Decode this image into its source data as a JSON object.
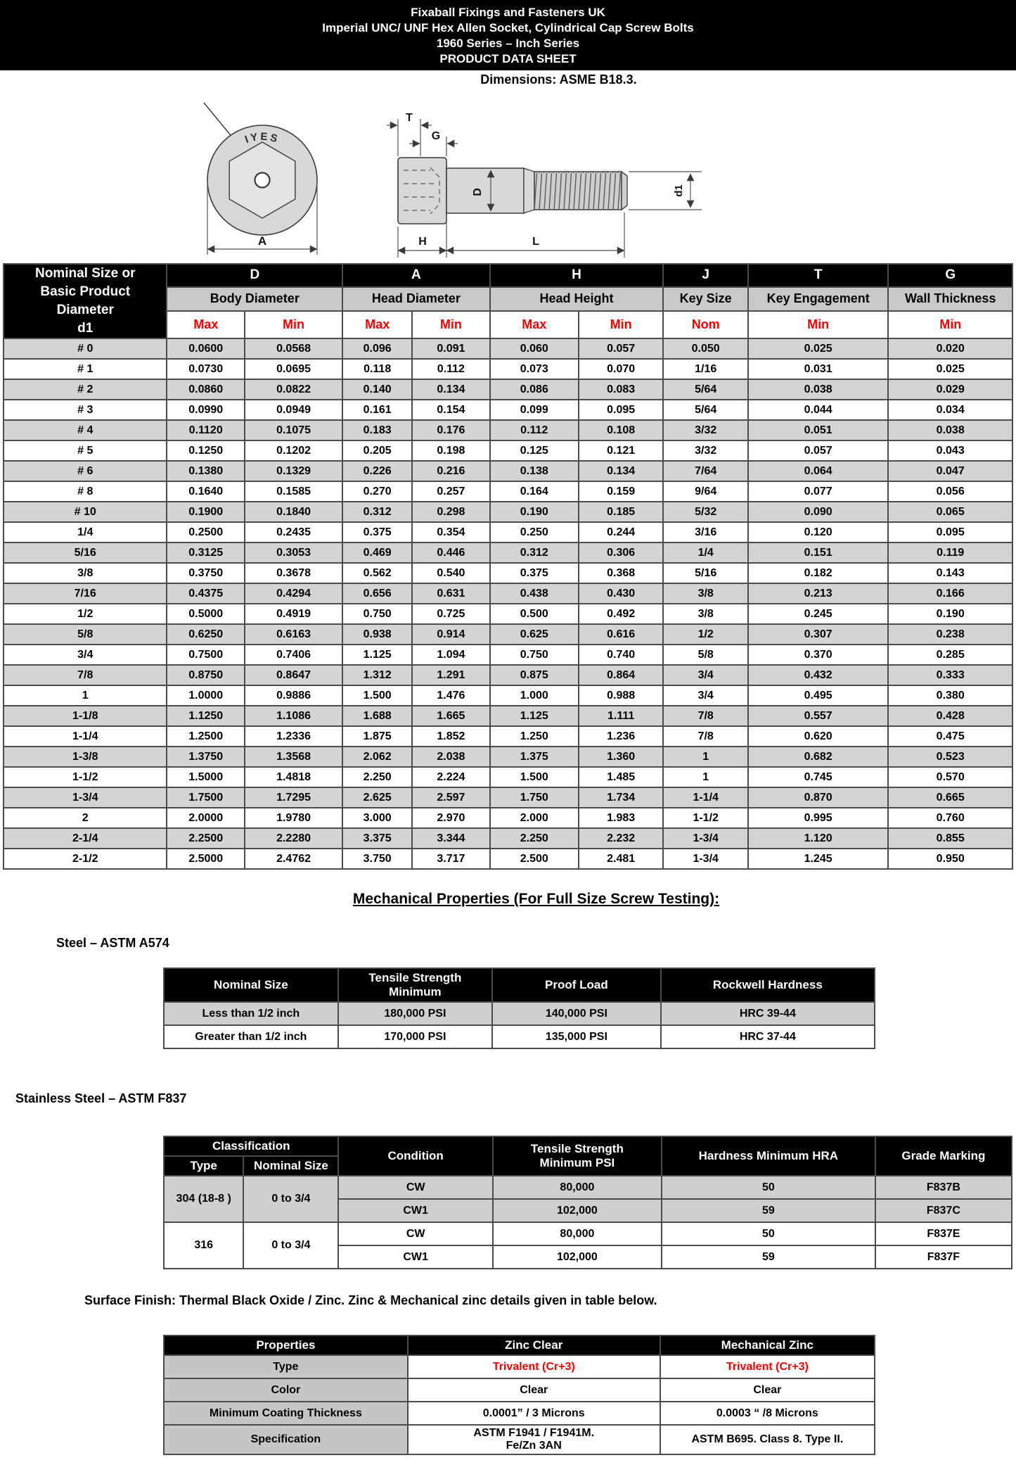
{
  "page": {
    "title_lines": [
      "Fixaball Fixings and Fasteners UK",
      "Imperial UNC/ UNF Hex Allen Socket, Cylindrical Cap Screw Bolts",
      "1960 Series – Inch Series",
      "PRODUCT DATA SHEET"
    ],
    "dimensions_note": "Dimensions: ASME B18.3."
  },
  "drawing": {
    "head_marking": "IYES",
    "dim_labels": {
      "T": "T",
      "G": "G",
      "D": "D",
      "d1": "d1",
      "A": "A",
      "H": "H",
      "L": "L"
    }
  },
  "dimension_table": {
    "corner_header": "Nominal Size or\nBasic Product\nDiameter\nd1",
    "groups": [
      {
        "code": "D",
        "name": "Body Diameter"
      },
      {
        "code": "A",
        "name": "Head Diameter"
      },
      {
        "code": "H",
        "name": "Head Height"
      },
      {
        "code": "J",
        "name": "Key Size"
      },
      {
        "code": "T",
        "name": "Key Engagement"
      },
      {
        "code": "G",
        "name": "Wall Thickness"
      }
    ],
    "sub_headers": [
      "Max",
      "Min",
      "Max",
      "Min",
      "Max",
      "Min",
      "Nom",
      "Min",
      "Min"
    ],
    "rows": [
      [
        "# 0",
        "0.0600",
        "0.0568",
        "0.096",
        "0.091",
        "0.060",
        "0.057",
        "0.050",
        "0.025",
        "0.020"
      ],
      [
        "# 1",
        "0.0730",
        "0.0695",
        "0.118",
        "0.112",
        "0.073",
        "0.070",
        "1/16",
        "0.031",
        "0.025"
      ],
      [
        "# 2",
        "0.0860",
        "0.0822",
        "0.140",
        "0.134",
        "0.086",
        "0.083",
        "5/64",
        "0.038",
        "0.029"
      ],
      [
        "# 3",
        "0.0990",
        "0.0949",
        "0.161",
        "0.154",
        "0.099",
        "0.095",
        "5/64",
        "0.044",
        "0.034"
      ],
      [
        "# 4",
        "0.1120",
        "0.1075",
        "0.183",
        "0.176",
        "0.112",
        "0.108",
        "3/32",
        "0.051",
        "0.038"
      ],
      [
        "# 5",
        "0.1250",
        "0.1202",
        "0.205",
        "0.198",
        "0.125",
        "0.121",
        "3/32",
        "0.057",
        "0.043"
      ],
      [
        "# 6",
        "0.1380",
        "0.1329",
        "0.226",
        "0.216",
        "0.138",
        "0.134",
        "7/64",
        "0.064",
        "0.047"
      ],
      [
        "# 8",
        "0.1640",
        "0.1585",
        "0.270",
        "0.257",
        "0.164",
        "0.159",
        "9/64",
        "0.077",
        "0.056"
      ],
      [
        "# 10",
        "0.1900",
        "0.1840",
        "0.312",
        "0.298",
        "0.190",
        "0.185",
        "5/32",
        "0.090",
        "0.065"
      ],
      [
        "1/4",
        "0.2500",
        "0.2435",
        "0.375",
        "0.354",
        "0.250",
        "0.244",
        "3/16",
        "0.120",
        "0.095"
      ],
      [
        "5/16",
        "0.3125",
        "0.3053",
        "0.469",
        "0.446",
        "0.312",
        "0.306",
        "1/4",
        "0.151",
        "0.119"
      ],
      [
        "3/8",
        "0.3750",
        "0.3678",
        "0.562",
        "0.540",
        "0.375",
        "0.368",
        "5/16",
        "0.182",
        "0.143"
      ],
      [
        "7/16",
        "0.4375",
        "0.4294",
        "0.656",
        "0.631",
        "0.438",
        "0.430",
        "3/8",
        "0.213",
        "0.166"
      ],
      [
        "1/2",
        "0.5000",
        "0.4919",
        "0.750",
        "0.725",
        "0.500",
        "0.492",
        "3/8",
        "0.245",
        "0.190"
      ],
      [
        "5/8",
        "0.6250",
        "0.6163",
        "0.938",
        "0.914",
        "0.625",
        "0.616",
        "1/2",
        "0.307",
        "0.238"
      ],
      [
        "3/4",
        "0.7500",
        "0.7406",
        "1.125",
        "1.094",
        "0.750",
        "0.740",
        "5/8",
        "0.370",
        "0.285"
      ],
      [
        "7/8",
        "0.8750",
        "0.8647",
        "1.312",
        "1.291",
        "0.875",
        "0.864",
        "3/4",
        "0.432",
        "0.333"
      ],
      [
        "1",
        "1.0000",
        "0.9886",
        "1.500",
        "1.476",
        "1.000",
        "0.988",
        "3/4",
        "0.495",
        "0.380"
      ],
      [
        "1-1/8",
        "1.1250",
        "1.1086",
        "1.688",
        "1.665",
        "1.125",
        "1.111",
        "7/8",
        "0.557",
        "0.428"
      ],
      [
        "1-1/4",
        "1.2500",
        "1.2336",
        "1.875",
        "1.852",
        "1.250",
        "1.236",
        "7/8",
        "0.620",
        "0.475"
      ],
      [
        "1-3/8",
        "1.3750",
        "1.3568",
        "2.062",
        "2.038",
        "1.375",
        "1.360",
        "1",
        "0.682",
        "0.523"
      ],
      [
        "1-1/2",
        "1.5000",
        "1.4818",
        "2.250",
        "2.224",
        "1.500",
        "1.485",
        "1",
        "0.745",
        "0.570"
      ],
      [
        "1-3/4",
        "1.7500",
        "1.7295",
        "2.625",
        "2.597",
        "1.750",
        "1.734",
        "1-1/4",
        "0.870",
        "0.665"
      ],
      [
        "2",
        "2.0000",
        "1.9780",
        "3.000",
        "2.970",
        "2.000",
        "1.983",
        "1-1/2",
        "0.995",
        "0.760"
      ],
      [
        "2-1/4",
        "2.2500",
        "2.2280",
        "3.375",
        "3.344",
        "2.250",
        "2.232",
        "1-3/4",
        "1.120",
        "0.855"
      ],
      [
        "2-1/2",
        "2.5000",
        "2.4762",
        "3.750",
        "3.717",
        "2.500",
        "2.481",
        "1-3/4",
        "1.245",
        "0.950"
      ]
    ]
  },
  "mechanical": {
    "heading": "Mechanical Properties (For Full Size Screw Testing): ",
    "steel": {
      "label": "Steel – ASTM A574",
      "headers": [
        "Nominal Size",
        "Tensile Strength\nMinimum",
        "Proof Load",
        "Rockwell Hardness"
      ],
      "rows": [
        [
          "Less than 1/2 inch",
          "180,000 PSI",
          "140,000 PSI",
          "HRC 39-44"
        ],
        [
          "Greater than 1/2 inch",
          "170,000 PSI",
          "135,000 PSI",
          "HRC 37-44"
        ]
      ]
    },
    "stainless": {
      "label": "Stainless Steel – ASTM F837",
      "headers": {
        "classification": "Classification",
        "type": "Type",
        "nominal_size": "Nominal Size",
        "condition": "Condition",
        "tensile": "Tensile Strength\nMinimum PSI",
        "hardness": "Hardness Minimum HRA",
        "grade": "Grade Marking"
      },
      "groups": [
        {
          "type": "304 (18-8 )",
          "nominal": "0 to 3/4",
          "rows": [
            [
              "CW",
              "80,000",
              "50",
              "F837B"
            ],
            [
              "CW1",
              "102,000",
              "59",
              "F837C"
            ]
          ]
        },
        {
          "type": "316",
          "nominal": "0 to 3/4",
          "rows": [
            [
              "CW",
              "80,000",
              "50",
              "F837E"
            ],
            [
              "CW1",
              "102,000",
              "59",
              "F837F"
            ]
          ]
        }
      ]
    }
  },
  "surface_finish": {
    "note": "Surface Finish: Thermal Black Oxide / Zinc. Zinc & Mechanical zinc details given in table below.",
    "headers": [
      "Properties",
      "Zinc Clear",
      "Mechanical Zinc"
    ],
    "rows": [
      {
        "label": "Type",
        "zinc_clear": "Trivalent (Cr+3)",
        "mech_zinc": "Trivalent (Cr+3)"
      },
      {
        "label": "Color",
        "zinc_clear": "Clear",
        "mech_zinc": "Clear"
      },
      {
        "label": "Minimum Coating Thickness",
        "zinc_clear": "0.0001” / 3 Microns",
        "mech_zinc": "0.0003 “ /8 Microns"
      },
      {
        "label": "Specification",
        "zinc_clear": "ASTM F1941 / F1941M.\nFe/Zn 3AN",
        "mech_zinc": "ASTM B695. Class 8. Type II."
      }
    ]
  },
  "colors": {
    "header_bg": "#000000",
    "accent_red": "#ff0000",
    "row_gray": "#d4d4d4",
    "subheader_gray": "#c9c9c9",
    "drawing_fill": "#d8d8d8"
  }
}
